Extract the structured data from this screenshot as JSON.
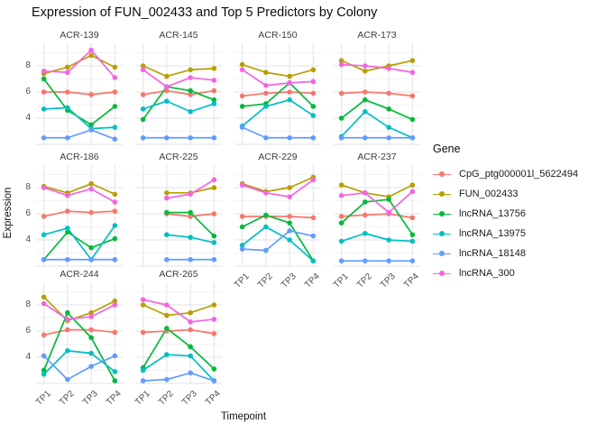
{
  "title": "Expression of FUN_002433 and Top 5 Predictors by Colony",
  "axes": {
    "x_label": "Timepoint",
    "y_label": "Expression",
    "x_ticks": [
      "TP1",
      "TP2",
      "TP3",
      "TP4"
    ],
    "y_ticks": [
      "8",
      "6",
      "4"
    ]
  },
  "legend": {
    "title": "Gene",
    "items": [
      {
        "label": "CpG_ptg000001l_5622494",
        "color": "#F8766D"
      },
      {
        "label": "FUN_002433",
        "color": "#B79F00"
      },
      {
        "label": "lncRNA_13756",
        "color": "#00BA38"
      },
      {
        "label": "lncRNA_13975",
        "color": "#00BFC4"
      },
      {
        "label": "lncRNA_18148",
        "color": "#619CFF"
      },
      {
        "label": "lncRNA_300",
        "color": "#F564E2"
      }
    ]
  },
  "chart_data": {
    "type": "line",
    "facet_by": "Colony",
    "x": [
      "TP1",
      "TP2",
      "TP3",
      "TP4"
    ],
    "ylim": [
      1.9,
      9.7
    ],
    "grid": true,
    "legend_position": "right",
    "series_order": [
      "CpG_ptg000001l_5622494",
      "FUN_002433",
      "lncRNA_13756",
      "lncRNA_13975",
      "lncRNA_18148",
      "lncRNA_300"
    ],
    "facets": [
      {
        "name": "ACR-139",
        "values": [
          [
            6.0,
            6.0,
            5.8,
            6.0
          ],
          [
            7.4,
            7.9,
            8.8,
            7.9
          ],
          [
            7.0,
            4.6,
            3.5,
            4.9
          ],
          [
            4.7,
            4.8,
            3.2,
            3.3
          ],
          [
            2.5,
            2.5,
            3.1,
            2.4
          ],
          [
            7.6,
            7.5,
            9.2,
            7.1
          ]
        ]
      },
      {
        "name": "ACR-145",
        "values": [
          [
            5.8,
            6.1,
            5.8,
            6.1
          ],
          [
            8.0,
            7.2,
            7.7,
            7.8
          ],
          [
            3.9,
            6.4,
            6.1,
            5.4
          ],
          [
            4.7,
            5.3,
            4.5,
            5.1
          ],
          [
            2.5,
            2.5,
            2.5,
            2.5
          ],
          [
            7.7,
            6.4,
            7.1,
            6.9
          ]
        ]
      },
      {
        "name": "ACR-150",
        "values": [
          [
            5.7,
            5.9,
            6.0,
            5.9
          ],
          [
            8.1,
            7.5,
            7.2,
            7.7
          ],
          [
            4.9,
            5.1,
            6.7,
            4.9
          ],
          [
            3.4,
            4.9,
            5.4,
            4.2
          ],
          [
            3.3,
            2.5,
            2.5,
            2.5
          ],
          [
            7.7,
            6.5,
            6.7,
            6.8
          ]
        ]
      },
      {
        "name": "ACR-173",
        "values": [
          [
            5.9,
            6.0,
            5.9,
            5.7
          ],
          [
            8.4,
            7.6,
            8.0,
            8.4
          ],
          [
            4.0,
            5.4,
            4.7,
            3.9
          ],
          [
            2.6,
            4.5,
            3.3,
            2.5
          ],
          [
            2.5,
            2.5,
            2.5,
            2.5
          ],
          [
            8.1,
            8.0,
            7.8,
            7.5
          ]
        ]
      },
      {
        "name": "ACR-186",
        "values": [
          [
            5.8,
            6.2,
            6.1,
            6.2
          ],
          [
            8.1,
            7.6,
            8.3,
            7.5
          ],
          [
            2.5,
            4.6,
            3.4,
            4.1
          ],
          [
            4.4,
            4.9,
            2.5,
            5.1
          ],
          [
            2.5,
            2.5,
            2.5,
            2.5
          ],
          [
            8.0,
            7.4,
            7.9,
            6.9
          ]
        ]
      },
      {
        "name": "ACR-225",
        "values": [
          [
            null,
            6.0,
            5.8,
            6.0
          ],
          [
            null,
            7.6,
            7.6,
            8.0
          ],
          [
            null,
            6.1,
            6.1,
            4.3
          ],
          [
            null,
            4.4,
            4.2,
            3.8
          ],
          [
            null,
            2.5,
            2.5,
            2.5
          ],
          [
            null,
            7.2,
            7.5,
            8.6
          ]
        ]
      },
      {
        "name": "ACR-229",
        "values": [
          [
            5.8,
            5.8,
            5.8,
            5.7
          ],
          [
            8.3,
            7.7,
            8.0,
            8.8
          ],
          [
            5.0,
            5.9,
            5.3,
            2.4
          ],
          [
            3.6,
            5.0,
            4.0,
            2.4
          ],
          [
            3.3,
            3.2,
            4.7,
            4.3
          ],
          [
            8.2,
            7.6,
            7.3,
            8.6
          ]
        ]
      },
      {
        "name": "ACR-237",
        "values": [
          [
            5.8,
            5.9,
            6.0,
            5.7
          ],
          [
            8.2,
            7.6,
            7.3,
            8.2
          ],
          [
            5.3,
            6.9,
            7.1,
            4.4
          ],
          [
            3.9,
            4.5,
            4.0,
            3.9
          ],
          [
            2.4,
            2.4,
            2.4,
            2.4
          ],
          [
            7.4,
            7.6,
            6.1,
            7.7
          ]
        ]
      },
      {
        "name": "ACR-244",
        "values": [
          [
            5.7,
            6.1,
            6.1,
            5.9
          ],
          [
            8.6,
            6.8,
            7.4,
            8.3
          ],
          [
            3.0,
            7.4,
            5.5,
            2.2
          ],
          [
            2.7,
            4.5,
            4.3,
            2.9
          ],
          [
            4.1,
            2.3,
            3.3,
            4.1
          ],
          [
            8.1,
            6.9,
            7.1,
            8.0
          ]
        ]
      },
      {
        "name": "ACR-265",
        "values": [
          [
            5.9,
            6.0,
            6.1,
            5.8
          ],
          [
            8.0,
            7.2,
            7.4,
            8.0
          ],
          [
            3.2,
            6.2,
            4.8,
            3.1
          ],
          [
            3.0,
            4.2,
            4.1,
            2.2
          ],
          [
            2.2,
            2.3,
            2.8,
            2.2
          ],
          [
            8.4,
            8.0,
            6.7,
            6.9
          ]
        ]
      }
    ]
  }
}
